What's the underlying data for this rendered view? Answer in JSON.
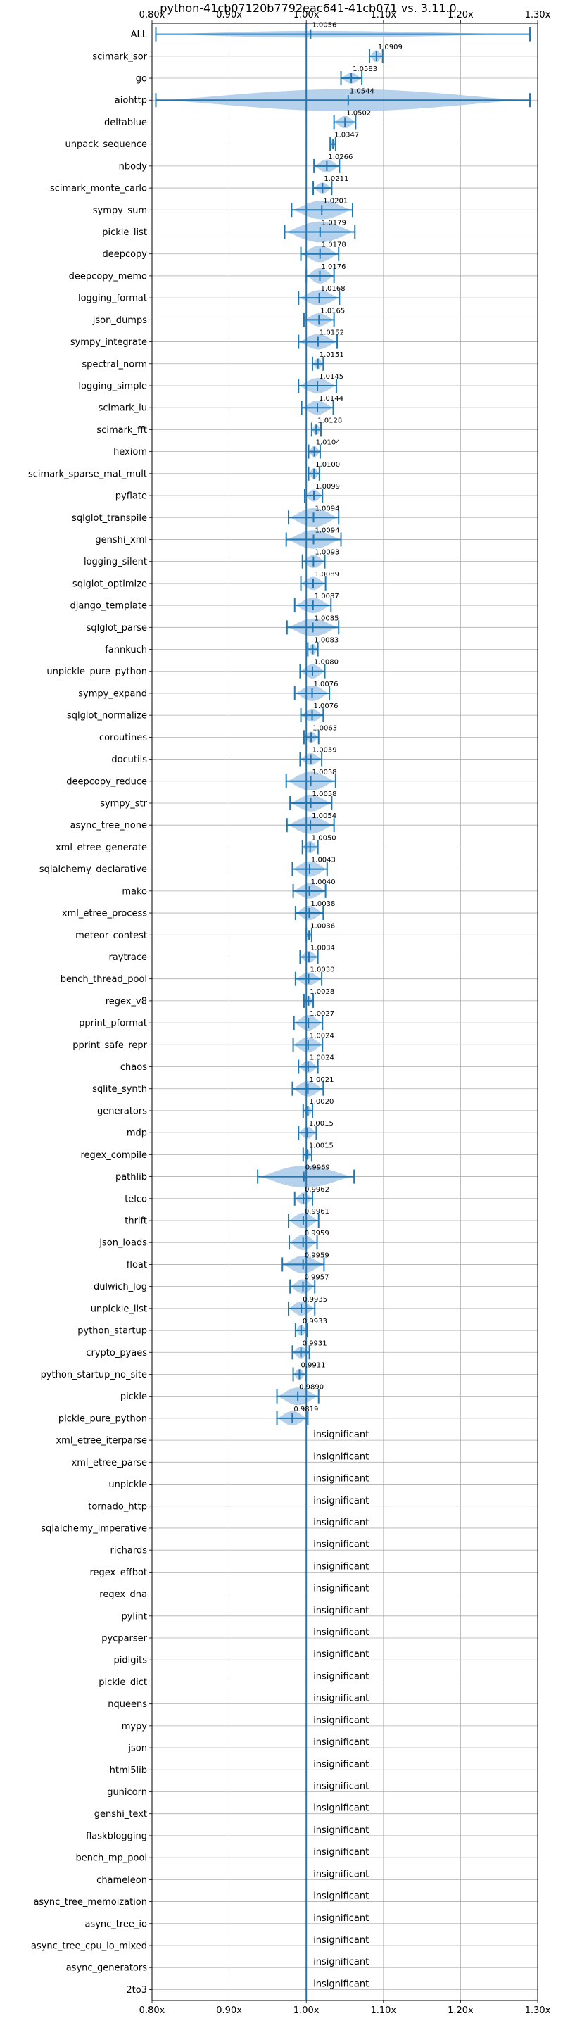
{
  "chart_data": {
    "type": "violin",
    "title": "python-41cb07120b7792eac641-41cb071 vs. 3.11.0",
    "xlim": [
      0.8,
      1.3
    ],
    "xticks": [
      "0.80x",
      "0.90x",
      "1.00x",
      "1.10x",
      "1.20x",
      "1.30x"
    ],
    "xtick_values": [
      0.8,
      0.9,
      1.0,
      1.1,
      1.2,
      1.3
    ],
    "reference_value": 1.0,
    "grid": true,
    "colors": {
      "violin": "#a9c9e8",
      "line": "#1f77b4",
      "grid": "#b0b0b0"
    },
    "insignificant_label": "insignificant",
    "benchmarks": [
      {
        "name": "ALL",
        "label": "1.0056",
        "value": 1.0056,
        "min": 0.805,
        "max": 1.29,
        "width": 0.3
      },
      {
        "name": "scimark_sor",
        "label": "1.0909",
        "value": 1.0909,
        "min": 1.082,
        "max": 1.099,
        "width": 0.55
      },
      {
        "name": "go",
        "label": "1.0583",
        "value": 1.0583,
        "min": 1.045,
        "max": 1.072,
        "width": 0.5
      },
      {
        "name": "aiohttp",
        "label": "1.0544",
        "value": 1.0544,
        "min": 0.805,
        "max": 1.29,
        "width": 1.0
      },
      {
        "name": "deltablue",
        "label": "1.0502",
        "value": 1.0502,
        "min": 1.036,
        "max": 1.064,
        "width": 0.55
      },
      {
        "name": "unpack_sequence",
        "label": "1.0347",
        "value": 1.0347,
        "min": 1.031,
        "max": 1.038,
        "width": 0.5
      },
      {
        "name": "nbody",
        "label": "1.0266",
        "value": 1.0266,
        "min": 1.01,
        "max": 1.043,
        "width": 0.6
      },
      {
        "name": "scimark_monte_carlo",
        "label": "1.0211",
        "value": 1.0211,
        "min": 1.009,
        "max": 1.033,
        "width": 0.5
      },
      {
        "name": "sympy_sum",
        "label": "1.0201",
        "value": 1.0201,
        "min": 0.981,
        "max": 1.06,
        "width": 0.85
      },
      {
        "name": "pickle_list",
        "label": "1.0179",
        "value": 1.0179,
        "min": 0.972,
        "max": 1.063,
        "width": 0.95
      },
      {
        "name": "deepcopy",
        "label": "1.0178",
        "value": 1.0178,
        "min": 0.993,
        "max": 1.042,
        "width": 0.75
      },
      {
        "name": "deepcopy_memo",
        "label": "1.0176",
        "value": 1.0176,
        "min": 1.0,
        "max": 1.036,
        "width": 0.7
      },
      {
        "name": "logging_format",
        "label": "1.0168",
        "value": 1.0168,
        "min": 0.99,
        "max": 1.043,
        "width": 0.7
      },
      {
        "name": "json_dumps",
        "label": "1.0165",
        "value": 1.0165,
        "min": 0.997,
        "max": 1.036,
        "width": 0.6
      },
      {
        "name": "sympy_integrate",
        "label": "1.0152",
        "value": 1.0152,
        "min": 0.99,
        "max": 1.04,
        "width": 0.7
      },
      {
        "name": "spectral_norm",
        "label": "1.0151",
        "value": 1.0151,
        "min": 1.008,
        "max": 1.022,
        "width": 0.5
      },
      {
        "name": "logging_simple",
        "label": "1.0145",
        "value": 1.0145,
        "min": 0.99,
        "max": 1.039,
        "width": 0.7
      },
      {
        "name": "scimark_lu",
        "label": "1.0144",
        "value": 1.0144,
        "min": 0.994,
        "max": 1.035,
        "width": 0.65
      },
      {
        "name": "scimark_fft",
        "label": "1.0128",
        "value": 1.0128,
        "min": 1.007,
        "max": 1.019,
        "width": 0.5
      },
      {
        "name": "hexiom",
        "label": "1.0104",
        "value": 1.0104,
        "min": 1.003,
        "max": 1.018,
        "width": 0.5
      },
      {
        "name": "scimark_sparse_mat_mult",
        "label": "1.0100",
        "value": 1.01,
        "min": 1.003,
        "max": 1.017,
        "width": 0.5
      },
      {
        "name": "pyflate",
        "label": "1.0099",
        "value": 1.0099,
        "min": 0.998,
        "max": 1.021,
        "width": 0.55
      },
      {
        "name": "sqlglot_transpile",
        "label": "1.0094",
        "value": 1.0094,
        "min": 0.977,
        "max": 1.042,
        "width": 0.85
      },
      {
        "name": "genshi_xml",
        "label": "1.0094",
        "value": 1.0094,
        "min": 0.974,
        "max": 1.045,
        "width": 0.85
      },
      {
        "name": "logging_silent",
        "label": "1.0093",
        "value": 1.0093,
        "min": 0.995,
        "max": 1.024,
        "width": 0.6
      },
      {
        "name": "sqlglot_optimize",
        "label": "1.0089",
        "value": 1.0089,
        "min": 0.993,
        "max": 1.025,
        "width": 0.6
      },
      {
        "name": "django_template",
        "label": "1.0087",
        "value": 1.0087,
        "min": 0.985,
        "max": 1.032,
        "width": 0.7
      },
      {
        "name": "sqlglot_parse",
        "label": "1.0085",
        "value": 1.0085,
        "min": 0.975,
        "max": 1.042,
        "width": 0.8
      },
      {
        "name": "fannkuch",
        "label": "1.0083",
        "value": 1.0083,
        "min": 1.002,
        "max": 1.015,
        "width": 0.5
      },
      {
        "name": "unpickle_pure_python",
        "label": "1.0080",
        "value": 1.008,
        "min": 0.992,
        "max": 1.024,
        "width": 0.65
      },
      {
        "name": "sympy_expand",
        "label": "1.0076",
        "value": 1.0076,
        "min": 0.985,
        "max": 1.03,
        "width": 0.7
      },
      {
        "name": "sqlglot_normalize",
        "label": "1.0076",
        "value": 1.0076,
        "min": 0.993,
        "max": 1.022,
        "width": 0.6
      },
      {
        "name": "coroutines",
        "label": "1.0063",
        "value": 1.0063,
        "min": 0.997,
        "max": 1.016,
        "width": 0.5
      },
      {
        "name": "docutils",
        "label": "1.0059",
        "value": 1.0059,
        "min": 0.992,
        "max": 1.02,
        "width": 0.55
      },
      {
        "name": "deepcopy_reduce",
        "label": "1.0058",
        "value": 1.0058,
        "min": 0.974,
        "max": 1.038,
        "width": 0.85
      },
      {
        "name": "sympy_str",
        "label": "1.0058",
        "value": 1.0058,
        "min": 0.979,
        "max": 1.033,
        "width": 0.75
      },
      {
        "name": "async_tree_none",
        "label": "1.0054",
        "value": 1.0054,
        "min": 0.975,
        "max": 1.036,
        "width": 0.8
      },
      {
        "name": "xml_etree_generate",
        "label": "1.0050",
        "value": 1.005,
        "min": 0.995,
        "max": 1.015,
        "width": 0.55
      },
      {
        "name": "sqlalchemy_declarative",
        "label": "1.0043",
        "value": 1.0043,
        "min": 0.982,
        "max": 1.027,
        "width": 0.7
      },
      {
        "name": "mako",
        "label": "1.0040",
        "value": 1.004,
        "min": 0.983,
        "max": 1.025,
        "width": 0.7
      },
      {
        "name": "xml_etree_process",
        "label": "1.0038",
        "value": 1.0038,
        "min": 0.986,
        "max": 1.022,
        "width": 0.65
      },
      {
        "name": "meteor_contest",
        "label": "1.0036",
        "value": 1.0036,
        "min": 1.0,
        "max": 1.007,
        "width": 0.4
      },
      {
        "name": "raytrace",
        "label": "1.0034",
        "value": 1.0034,
        "min": 0.992,
        "max": 1.015,
        "width": 0.55
      },
      {
        "name": "bench_thread_pool",
        "label": "1.0030",
        "value": 1.003,
        "min": 0.986,
        "max": 1.02,
        "width": 0.6
      },
      {
        "name": "regex_v8",
        "label": "1.0028",
        "value": 1.0028,
        "min": 0.997,
        "max": 1.009,
        "width": 0.45
      },
      {
        "name": "pprint_pformat",
        "label": "1.0027",
        "value": 1.0027,
        "min": 0.984,
        "max": 1.021,
        "width": 0.7
      },
      {
        "name": "pprint_safe_repr",
        "label": "1.0024",
        "value": 1.0024,
        "min": 0.983,
        "max": 1.021,
        "width": 0.7
      },
      {
        "name": "chaos",
        "label": "1.0024",
        "value": 1.0024,
        "min": 0.99,
        "max": 1.015,
        "width": 0.55
      },
      {
        "name": "sqlite_synth",
        "label": "1.0021",
        "value": 1.0021,
        "min": 0.982,
        "max": 1.022,
        "width": 0.7
      },
      {
        "name": "generators",
        "label": "1.0020",
        "value": 1.002,
        "min": 0.996,
        "max": 1.008,
        "width": 0.45
      },
      {
        "name": "mdp",
        "label": "1.0015",
        "value": 1.0015,
        "min": 0.99,
        "max": 1.013,
        "width": 0.55
      },
      {
        "name": "regex_compile",
        "label": "1.0015",
        "value": 1.0015,
        "min": 0.996,
        "max": 1.007,
        "width": 0.45
      },
      {
        "name": "pathlib",
        "label": "0.9969",
        "value": 0.9969,
        "min": 0.937,
        "max": 1.062,
        "width": 1.0
      },
      {
        "name": "telco",
        "label": "0.9962",
        "value": 0.9962,
        "min": 0.985,
        "max": 1.008,
        "width": 0.55
      },
      {
        "name": "thrift",
        "label": "0.9961",
        "value": 0.9961,
        "min": 0.977,
        "max": 1.016,
        "width": 0.7
      },
      {
        "name": "json_loads",
        "label": "0.9959",
        "value": 0.9959,
        "min": 0.978,
        "max": 1.014,
        "width": 0.7
      },
      {
        "name": "float",
        "label": "0.9959",
        "value": 0.9959,
        "min": 0.969,
        "max": 1.023,
        "width": 0.8
      },
      {
        "name": "dulwich_log",
        "label": "0.9957",
        "value": 0.9957,
        "min": 0.979,
        "max": 1.011,
        "width": 0.65
      },
      {
        "name": "unpickle_list",
        "label": "0.9935",
        "value": 0.9935,
        "min": 0.977,
        "max": 1.011,
        "width": 0.65
      },
      {
        "name": "python_startup",
        "label": "0.9933",
        "value": 0.9933,
        "min": 0.986,
        "max": 1.001,
        "width": 0.5
      },
      {
        "name": "crypto_pyaes",
        "label": "0.9931",
        "value": 0.9931,
        "min": 0.982,
        "max": 1.004,
        "width": 0.55
      },
      {
        "name": "python_startup_no_site",
        "label": "0.9911",
        "value": 0.9911,
        "min": 0.983,
        "max": 0.999,
        "width": 0.5
      },
      {
        "name": "pickle",
        "label": "0.9890",
        "value": 0.989,
        "min": 0.962,
        "max": 1.016,
        "width": 0.8
      },
      {
        "name": "pickle_pure_python",
        "label": "0.9819",
        "value": 0.9819,
        "min": 0.962,
        "max": 1.002,
        "width": 0.65
      },
      {
        "name": "xml_etree_iterparse",
        "label": "insignificant",
        "insignificant": true
      },
      {
        "name": "xml_etree_parse",
        "label": "insignificant",
        "insignificant": true
      },
      {
        "name": "unpickle",
        "label": "insignificant",
        "insignificant": true
      },
      {
        "name": "tornado_http",
        "label": "insignificant",
        "insignificant": true
      },
      {
        "name": "sqlalchemy_imperative",
        "label": "insignificant",
        "insignificant": true
      },
      {
        "name": "richards",
        "label": "insignificant",
        "insignificant": true
      },
      {
        "name": "regex_effbot",
        "label": "insignificant",
        "insignificant": true
      },
      {
        "name": "regex_dna",
        "label": "insignificant",
        "insignificant": true
      },
      {
        "name": "pylint",
        "label": "insignificant",
        "insignificant": true
      },
      {
        "name": "pycparser",
        "label": "insignificant",
        "insignificant": true
      },
      {
        "name": "pidigits",
        "label": "insignificant",
        "insignificant": true
      },
      {
        "name": "pickle_dict",
        "label": "insignificant",
        "insignificant": true
      },
      {
        "name": "nqueens",
        "label": "insignificant",
        "insignificant": true
      },
      {
        "name": "mypy",
        "label": "insignificant",
        "insignificant": true
      },
      {
        "name": "json",
        "label": "insignificant",
        "insignificant": true
      },
      {
        "name": "html5lib",
        "label": "insignificant",
        "insignificant": true
      },
      {
        "name": "gunicorn",
        "label": "insignificant",
        "insignificant": true
      },
      {
        "name": "genshi_text",
        "label": "insignificant",
        "insignificant": true
      },
      {
        "name": "flaskblogging",
        "label": "insignificant",
        "insignificant": true
      },
      {
        "name": "bench_mp_pool",
        "label": "insignificant",
        "insignificant": true
      },
      {
        "name": "chameleon",
        "label": "insignificant",
        "insignificant": true
      },
      {
        "name": "async_tree_memoization",
        "label": "insignificant",
        "insignificant": true
      },
      {
        "name": "async_tree_io",
        "label": "insignificant",
        "insignificant": true
      },
      {
        "name": "async_tree_cpu_io_mixed",
        "label": "insignificant",
        "insignificant": true
      },
      {
        "name": "async_generators",
        "label": "insignificant",
        "insignificant": true
      },
      {
        "name": "2to3",
        "label": "insignificant",
        "insignificant": true
      }
    ]
  }
}
